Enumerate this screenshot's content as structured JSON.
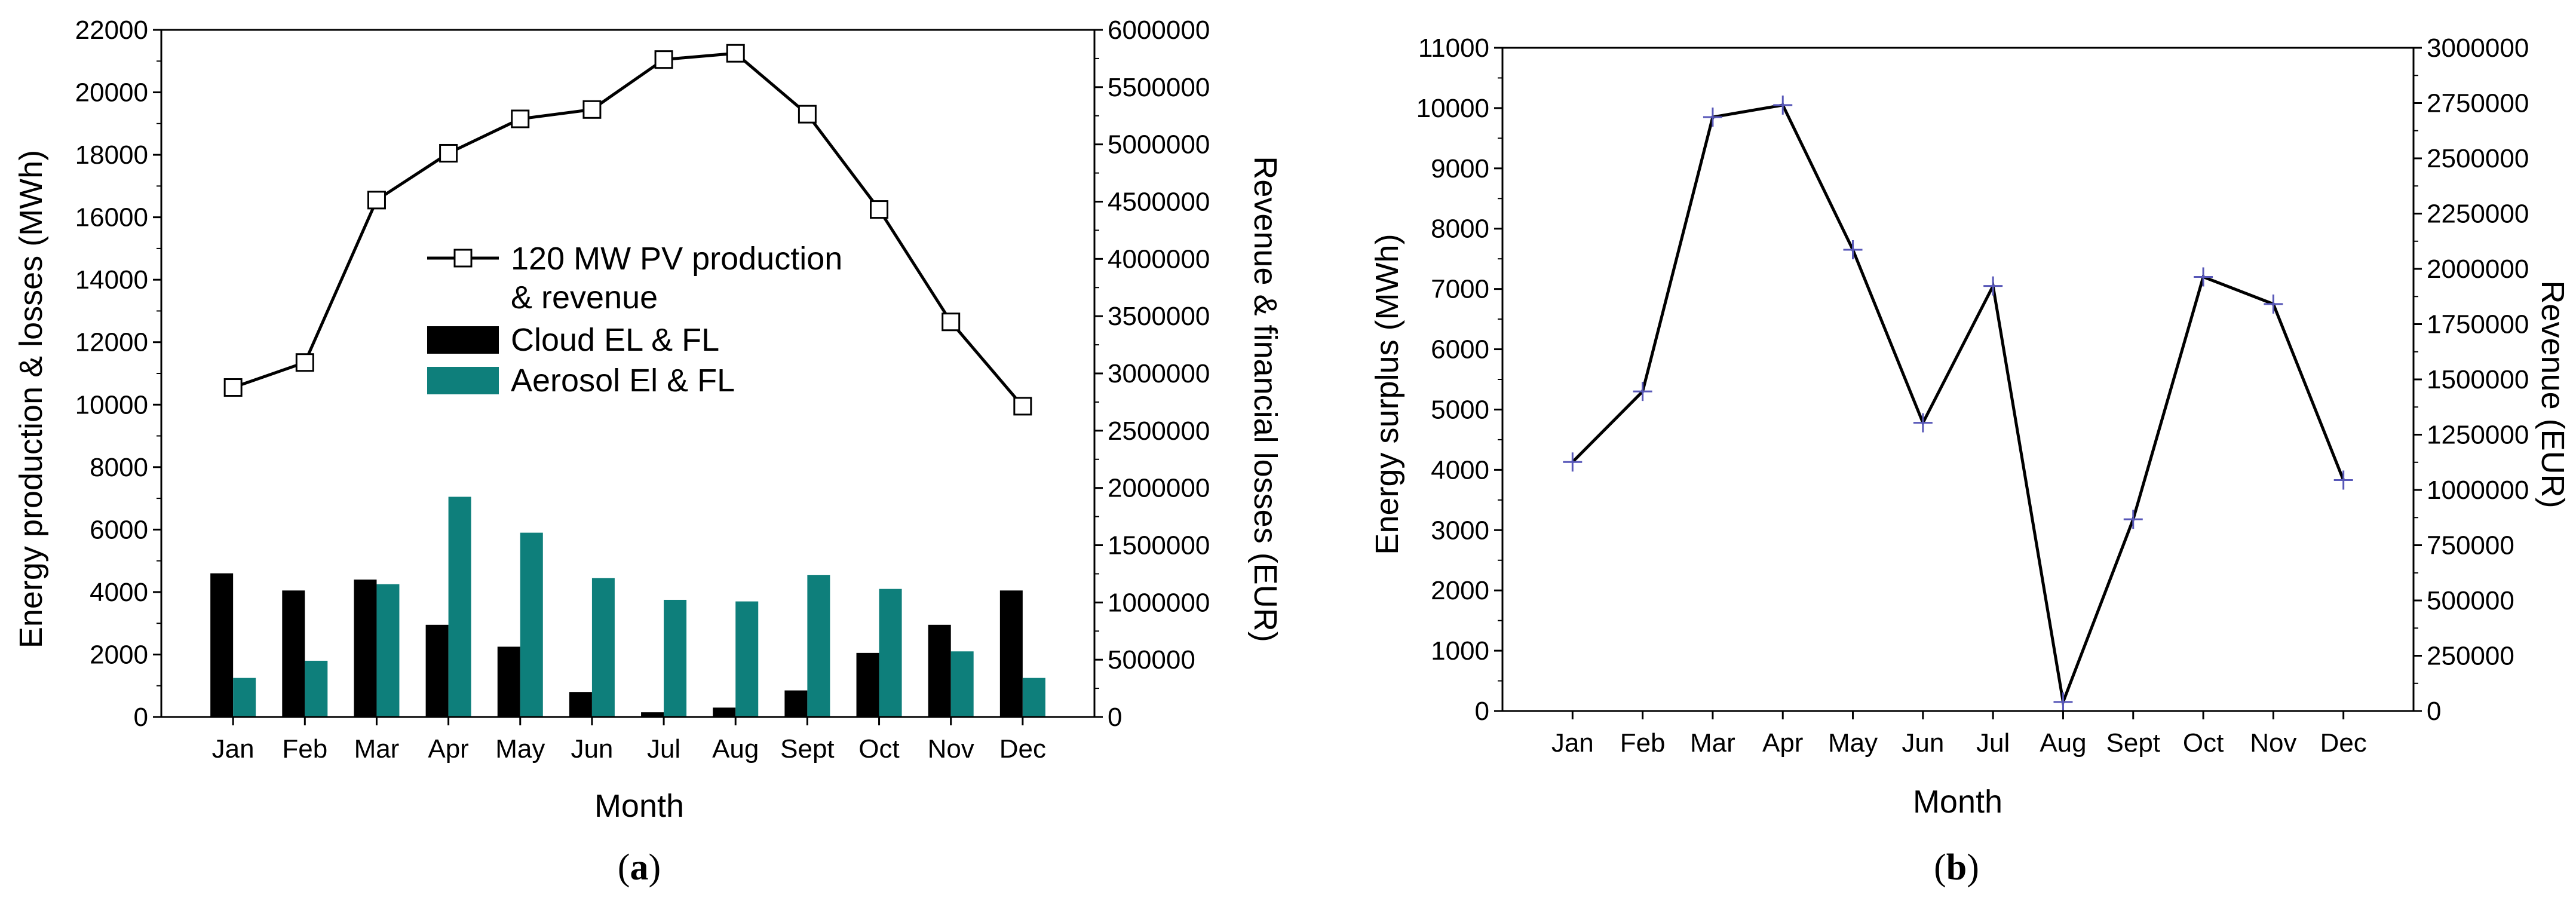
{
  "colors": {
    "cloud": "#000000",
    "aerosol": "#0e7f7b",
    "line": "#000000",
    "marker_fill": "#ffffff",
    "cross": "#5757b8"
  },
  "chart_data": [
    {
      "panel": "a",
      "panel_label_pre": "(",
      "panel_label_letter": "a",
      "panel_label_post": ")",
      "type": "bar+line",
      "title": "",
      "xlabel": "Month",
      "ylabel": "Energy production & losses (MWh)",
      "y2label": "Revenue & financial losses (EUR)",
      "categories": [
        "Jan",
        "Feb",
        "Mar",
        "Apr",
        "May",
        "Jun",
        "Jul",
        "Aug",
        "Sept",
        "Oct",
        "Nov",
        "Dec"
      ],
      "ylim": [
        0,
        22000
      ],
      "yticks": [
        0,
        2000,
        4000,
        6000,
        8000,
        10000,
        12000,
        14000,
        16000,
        18000,
        20000,
        22000
      ],
      "y2lim": [
        0,
        6000000
      ],
      "y2ticks": [
        0,
        500000,
        1000000,
        1500000,
        2000000,
        2500000,
        3000000,
        3500000,
        4000000,
        4500000,
        5000000,
        5500000,
        6000000
      ],
      "series": [
        {
          "name": "120 MW PV production & revenue",
          "type": "line",
          "marker": "open-square",
          "values": [
            10550,
            11350,
            16550,
            18050,
            19150,
            19450,
            21050,
            21250,
            19300,
            16250,
            12650,
            9950
          ]
        },
        {
          "name": "Cloud EL & FL",
          "type": "bar",
          "values": [
            4600,
            4050,
            4400,
            2950,
            2250,
            800,
            150,
            300,
            850,
            2050,
            2950,
            4050
          ]
        },
        {
          "name": "Aerosol El & FL",
          "type": "bar",
          "values": [
            1250,
            1800,
            4250,
            7050,
            5900,
            4450,
            3750,
            3700,
            4550,
            4100,
            2100,
            1250
          ]
        }
      ],
      "legend": {
        "line_line1": "120 MW PV production",
        "line_line2": "& revenue",
        "cloud": "Cloud EL & FL",
        "aerosol": "Aerosol El & FL"
      }
    },
    {
      "panel": "b",
      "panel_label_pre": "(",
      "panel_label_letter": "b",
      "panel_label_post": ")",
      "type": "line",
      "title": "",
      "xlabel": "Month",
      "ylabel": "Energy surplus (MWh)",
      "y2label": "Revenue (EUR)",
      "categories": [
        "Jan",
        "Feb",
        "Mar",
        "Apr",
        "May",
        "Jun",
        "Jul",
        "Aug",
        "Sept",
        "Oct",
        "Nov",
        "Dec"
      ],
      "ylim": [
        0,
        11000
      ],
      "yticks": [
        0,
        1000,
        2000,
        3000,
        4000,
        5000,
        6000,
        7000,
        8000,
        9000,
        10000,
        11000
      ],
      "y2lim": [
        0,
        3000000
      ],
      "y2ticks": [
        0,
        250000,
        500000,
        750000,
        1000000,
        1250000,
        1500000,
        1750000,
        2000000,
        2250000,
        2500000,
        2750000,
        3000000
      ],
      "series": [
        {
          "name": "Energy surplus",
          "type": "line",
          "marker": "cross",
          "values": [
            4130,
            5300,
            9850,
            10050,
            7650,
            4780,
            7050,
            150,
            3180,
            7200,
            6750,
            3830
          ]
        }
      ]
    }
  ]
}
